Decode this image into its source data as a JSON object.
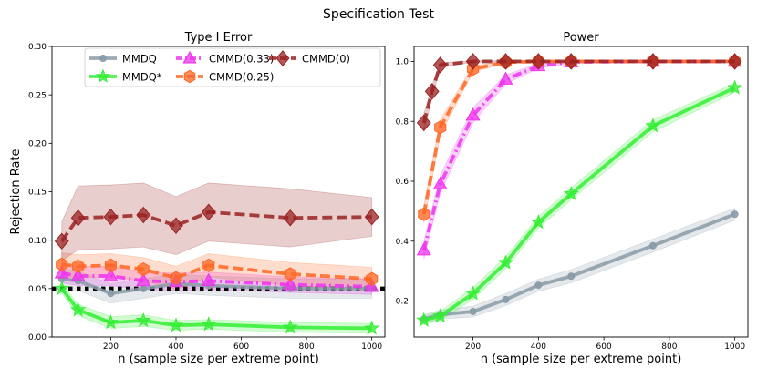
{
  "suptitle": "Specification Test",
  "chart_data": [
    {
      "type": "line",
      "title": "Type I Error",
      "xlabel": "n (sample size per extreme point)",
      "ylabel": "Rejection Rate",
      "xlim": [
        20,
        1040
      ],
      "ylim": [
        0.0,
        0.3
      ],
      "xticks": [
        "200",
        "400",
        "600",
        "800",
        "1000"
      ],
      "yticks": [
        "0.00",
        "0.05",
        "0.10",
        "0.15",
        "0.20",
        "0.25",
        "0.30"
      ],
      "reference_line": {
        "y": 0.05,
        "style": "dotted"
      },
      "legend": {
        "position": "top",
        "entries": [
          "MMDQ",
          "MMDQ*",
          "CMMD(0.33)",
          "CMMD(0.25)",
          "CMMD(0)"
        ]
      },
      "series": [
        {
          "name": "MMDQ",
          "color": "#8a9ba8",
          "marker": "circle",
          "dash": "solid",
          "x": [
            50,
            100,
            200,
            300,
            400,
            500,
            750,
            1000
          ],
          "y": [
            0.06,
            0.058,
            0.045,
            0.05,
            0.055,
            0.053,
            0.05,
            0.05
          ],
          "band": [
            0.01,
            0.01,
            0.01,
            0.01,
            0.01,
            0.01,
            0.01,
            0.01
          ]
        },
        {
          "name": "MMDQ*",
          "color": "#33ee33",
          "marker": "star",
          "dash": "solid",
          "x": [
            50,
            100,
            200,
            300,
            400,
            500,
            750,
            1000
          ],
          "y": [
            0.05,
            0.028,
            0.015,
            0.017,
            0.012,
            0.013,
            0.01,
            0.009
          ],
          "band": [
            0.005,
            0.006,
            0.006,
            0.006,
            0.005,
            0.005,
            0.005,
            0.005
          ]
        },
        {
          "name": "CMMD(0.33)",
          "color": "#ee33ee",
          "marker": "triangle",
          "dash": "dashdot",
          "x": [
            50,
            100,
            200,
            300,
            400,
            500,
            750,
            1000
          ],
          "y": [
            0.066,
            0.063,
            0.063,
            0.058,
            0.057,
            0.058,
            0.054,
            0.052
          ],
          "band": [
            0.01,
            0.01,
            0.01,
            0.009,
            0.009,
            0.009,
            0.008,
            0.008
          ]
        },
        {
          "name": "CMMD(0.25)",
          "color": "#ff6622",
          "marker": "hexagon",
          "dash": "dashed",
          "x": [
            50,
            100,
            200,
            300,
            400,
            500,
            750,
            1000
          ],
          "y": [
            0.075,
            0.073,
            0.074,
            0.07,
            0.061,
            0.074,
            0.065,
            0.06
          ],
          "band": [
            0.012,
            0.012,
            0.012,
            0.012,
            0.012,
            0.012,
            0.012,
            0.012
          ]
        },
        {
          "name": "CMMD(0)",
          "color": "#992222",
          "marker": "diamond",
          "dash": "dashed",
          "x": [
            50,
            100,
            200,
            300,
            400,
            500,
            750,
            1000
          ],
          "y": [
            0.099,
            0.123,
            0.124,
            0.126,
            0.115,
            0.129,
            0.123,
            0.124
          ],
          "band": [
            0.02,
            0.033,
            0.033,
            0.033,
            0.03,
            0.03,
            0.03,
            0.02
          ]
        }
      ]
    },
    {
      "type": "line",
      "title": "Power",
      "xlabel": "n (sample size per extreme point)",
      "ylabel": "",
      "xlim": [
        20,
        1040
      ],
      "ylim": [
        0.08,
        1.05
      ],
      "xticks": [
        "200",
        "400",
        "600",
        "800",
        "1000"
      ],
      "yticks": [
        "0.2",
        "0.4",
        "0.6",
        "0.8",
        "1.0"
      ],
      "series": [
        {
          "name": "MMDQ",
          "color": "#8a9ba8",
          "marker": "circle",
          "dash": "solid",
          "x": [
            50,
            100,
            200,
            300,
            400,
            500,
            750,
            1000
          ],
          "y": [
            0.14,
            0.155,
            0.165,
            0.205,
            0.253,
            0.283,
            0.385,
            0.49
          ],
          "band": [
            0.015,
            0.015,
            0.018,
            0.02,
            0.02,
            0.022,
            0.022,
            0.02
          ]
        },
        {
          "name": "MMDQ*",
          "color": "#33ee33",
          "marker": "star",
          "dash": "solid",
          "x": [
            50,
            100,
            200,
            300,
            400,
            500,
            750,
            1000
          ],
          "y": [
            0.136,
            0.15,
            0.225,
            0.328,
            0.463,
            0.558,
            0.785,
            0.912
          ],
          "band": [
            0.015,
            0.015,
            0.02,
            0.02,
            0.02,
            0.02,
            0.02,
            0.015
          ]
        },
        {
          "name": "CMMD(0.33)",
          "color": "#ee33ee",
          "marker": "triangle",
          "dash": "dashdot",
          "x": [
            50,
            100,
            200,
            300,
            400,
            500,
            750,
            1000
          ],
          "y": [
            0.37,
            0.59,
            0.82,
            0.94,
            0.985,
            0.998,
            1.0,
            1.0
          ],
          "band": [
            0.03,
            0.03,
            0.025,
            0.015,
            0.008,
            0.004,
            0.002,
            0.002
          ]
        },
        {
          "name": "CMMD(0.25)",
          "color": "#ff6622",
          "marker": "hexagon",
          "dash": "dashed",
          "x": [
            50,
            100,
            200,
            300,
            400,
            500,
            750,
            1000
          ],
          "y": [
            0.49,
            0.78,
            0.975,
            0.997,
            1.0,
            1.0,
            1.0,
            1.0
          ],
          "band": [
            0.03,
            0.025,
            0.01,
            0.004,
            0.002,
            0.002,
            0.002,
            0.002
          ]
        },
        {
          "name": "CMMD(0)",
          "color": "#992222",
          "marker": "diamond",
          "dash": "dashed",
          "x": [
            50,
            75,
            100,
            200,
            300,
            400,
            500,
            750,
            1000
          ],
          "y": [
            0.795,
            0.9,
            0.988,
            1.0,
            1.0,
            1.0,
            1.0,
            1.0,
            1.0
          ],
          "band": [
            0.03,
            0.02,
            0.008,
            0.002,
            0.002,
            0.002,
            0.002,
            0.002,
            0.002
          ]
        }
      ]
    }
  ]
}
